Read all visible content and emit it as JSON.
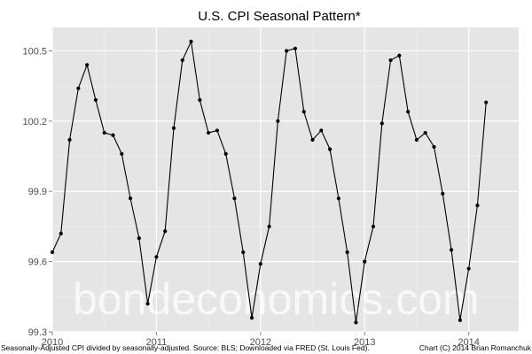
{
  "chart_data": {
    "type": "line",
    "title": "U.S. CPI Seasonal Pattern*",
    "xlabel": "",
    "ylabel": "",
    "x_ticks": [
      2010,
      2011,
      2012,
      2013,
      2014
    ],
    "y_ticks": [
      "99.3",
      "99.6",
      "99.9",
      "100.2",
      "100.5"
    ],
    "xlim": [
      2010,
      2014.48
    ],
    "ylim": [
      99.3,
      100.6
    ],
    "grid": true,
    "legend": "none",
    "line_color": "#000000",
    "panel_color": "#e5e5e5",
    "grid_color": "#ffffff",
    "series": [
      {
        "x": [
          2010.0,
          2010.0833,
          2010.1667,
          2010.25,
          2010.3333,
          2010.4167,
          2010.5,
          2010.5833,
          2010.6667,
          2010.75,
          2010.8333,
          2010.9167,
          2011.0,
          2011.0833,
          2011.1667,
          2011.25,
          2011.3333,
          2011.4167,
          2011.5,
          2011.5833,
          2011.6667,
          2011.75,
          2011.8333,
          2011.9167,
          2012.0,
          2012.0833,
          2012.1667,
          2012.25,
          2012.3333,
          2012.4167,
          2012.5,
          2012.5833,
          2012.6667,
          2012.75,
          2012.8333,
          2012.9167,
          2013.0,
          2013.0833,
          2013.1667,
          2013.25,
          2013.3333,
          2013.4167,
          2013.5,
          2013.5833,
          2013.6667,
          2013.75,
          2013.8333,
          2013.9167,
          2014.0,
          2014.0833,
          2014.1667
        ],
        "y": [
          99.64,
          99.72,
          100.12,
          100.34,
          100.44,
          100.29,
          100.15,
          100.14,
          100.06,
          99.87,
          99.7,
          99.42,
          99.62,
          99.73,
          100.17,
          100.46,
          100.54,
          100.29,
          100.15,
          100.16,
          100.06,
          99.87,
          99.64,
          99.36,
          99.59,
          99.75,
          100.2,
          100.5,
          100.51,
          100.24,
          100.12,
          100.16,
          100.08,
          99.87,
          99.64,
          99.34,
          99.6,
          99.75,
          100.19,
          100.46,
          100.48,
          100.24,
          100.12,
          100.15,
          100.09,
          99.89,
          99.65,
          99.35,
          99.57,
          99.84,
          100.28
        ]
      }
    ]
  },
  "footer": {
    "left_note": "Seasonally-Adjusted CPI divided by seasonally-adjusted. Source: BLS; Downloaded via FRED (St. Louis Fed).",
    "right_note": "Chart (C) 2014 Brian Romanchuk"
  },
  "watermark": "bondeconomics.com"
}
